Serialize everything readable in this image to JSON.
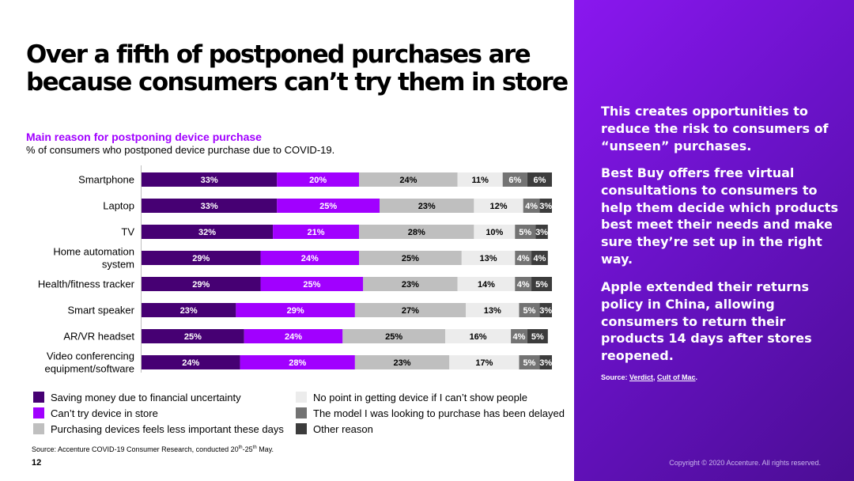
{
  "title": {
    "line1": "Over a fifth of postponed purchases are",
    "line2": "because consumers can’t try them in store"
  },
  "chart_title": "Main reason for postponing device purchase",
  "chart_subtitle": "% of consumers who postponed device purchase due to COVID-19.",
  "chart_data": {
    "type": "bar",
    "orientation": "horizontal",
    "stacked": true,
    "categories": [
      "Smartphone",
      "Laptop",
      "TV",
      "Home automation system",
      "Health/fitness tracker",
      "Smart speaker",
      "AR/VR headset",
      "Video conferencing equipment/software"
    ],
    "category_lines": [
      [
        "Smartphone"
      ],
      [
        "Laptop"
      ],
      [
        "TV"
      ],
      [
        "Home automation",
        "system"
      ],
      [
        "Health/fitness tracker"
      ],
      [
        "Smart speaker"
      ],
      [
        "AR/VR headset"
      ],
      [
        "Video conferencing",
        "equipment/software"
      ]
    ],
    "series": [
      {
        "name": "Saving money due to financial uncertainty",
        "color": "#460073",
        "label_color": "#ffffff",
        "values": [
          33,
          33,
          32,
          29,
          29,
          23,
          25,
          24
        ]
      },
      {
        "name": "Can’t try device in store",
        "color": "#a100ff",
        "label_color": "#ffffff",
        "values": [
          20,
          25,
          21,
          24,
          25,
          29,
          24,
          28
        ]
      },
      {
        "name": "Purchasing devices feels less important these days",
        "color": "#bfbfbf",
        "label_color": "#000000",
        "values": [
          24,
          23,
          28,
          25,
          23,
          27,
          25,
          23
        ]
      },
      {
        "name": "No point in getting device if I can’t show people",
        "color": "#ececec",
        "label_color": "#000000",
        "values": [
          11,
          12,
          10,
          13,
          14,
          13,
          16,
          17
        ]
      },
      {
        "name": "The model I was looking to purchase has been delayed",
        "color": "#737373",
        "label_color": "#ffffff",
        "values": [
          6,
          4,
          5,
          4,
          4,
          5,
          4,
          5
        ]
      },
      {
        "name": "Other reason",
        "color": "#3c3c3c",
        "label_color": "#ffffff",
        "values": [
          6,
          3,
          3,
          4,
          5,
          3,
          5,
          3
        ]
      }
    ],
    "value_suffix": "%",
    "xlim": [
      0,
      100
    ],
    "xlabel": "",
    "ylabel": ""
  },
  "source": {
    "text": "Source: Accenture COVID-19 Consumer Research, conducted 20",
    "sup1": "th",
    "dash": "-25",
    "sup2": "th",
    "end": " May."
  },
  "page_number": "12",
  "panel": {
    "para1": "This creates opportunities to reduce the risk to consumers of “unseen” purchases.",
    "para2": "Best Buy offers free virtual consultations to consumers to help them decide which products best meet their needs and make sure they’re set up in the right way.",
    "para3": "Apple extended their returns policy in China, allowing consumers to return their products 14 days after stores reopened.",
    "source_label": "Source: ",
    "source_link1": "Verdict",
    "source_sep": ", ",
    "source_link2": "Cult of Mac",
    "source_end": "."
  },
  "copyright": "Copyright © 2020 Accenture. All rights reserved."
}
